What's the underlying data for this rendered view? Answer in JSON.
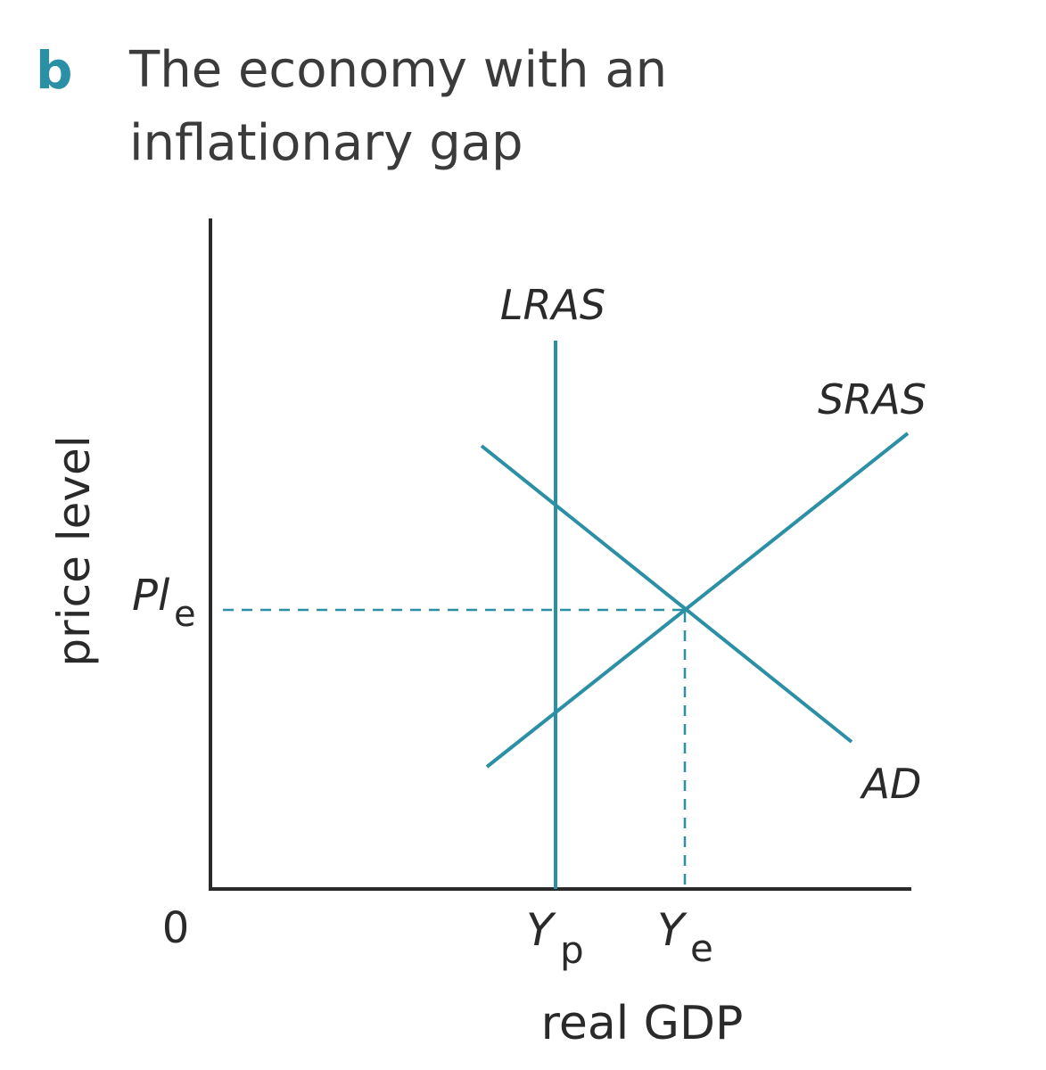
{
  "panel": {
    "letter": "b",
    "title": "The economy with an inflationary gap"
  },
  "axes": {
    "y_label": "price level",
    "x_label": "real GDP",
    "origin": "0"
  },
  "curves": {
    "lras": "LRAS",
    "sras": "SRAS",
    "ad": "AD"
  },
  "markers": {
    "price_level_main": "Pl",
    "price_level_sub": "e",
    "yp_main": "Y",
    "yp_sub": "p",
    "ye_main": "Y",
    "ye_sub": "e"
  },
  "colors": {
    "curve": "#2b8fa5",
    "axis": "#2a2a2a",
    "panel_letter": "#2b8fa5"
  }
}
